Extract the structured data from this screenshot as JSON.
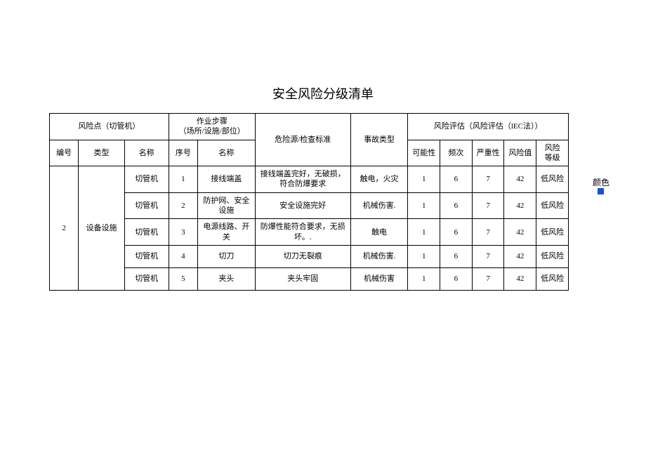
{
  "title": "安全风险分级清单",
  "headers": {
    "risk_point": "风险点（切管机）",
    "work_step": "作业步骤\n（场所/设施/部位）",
    "hazard": "危险源/检查标准",
    "accident_type": "事故类型",
    "risk_eval": "风险评估（风险评估（lEC法））",
    "no": "编号",
    "type": "类型",
    "name": "名称",
    "step_no": "序号",
    "step_name": "名称",
    "possibility": "可能性",
    "frequency": "频次",
    "severity": "严重性",
    "risk_value": "风险值",
    "risk_level": "风险\n等级"
  },
  "group": {
    "no": "2",
    "type": "设备设施"
  },
  "rows": [
    {
      "name": "切管机",
      "step_no": "1",
      "step_name": "接线端盖",
      "hazard": "接线端盖完好，无破损，符合防爆要求",
      "accident": "触电，火灾",
      "p": "1",
      "f": "6",
      "s": "7",
      "v": "42",
      "lvl": "低风险"
    },
    {
      "name": "切管机",
      "step_no": "2",
      "step_name": "防护网、安全设施",
      "hazard": "安全设施完好",
      "accident": "机械伤害.",
      "p": "1",
      "f": "6",
      "s": "7",
      "v": "42",
      "lvl": "低风险"
    },
    {
      "name": "切管机",
      "step_no": "3",
      "step_name": "电源线路、开关",
      "hazard": "防爆性能符合要求，无损坏。.",
      "accident": "触电",
      "p": "1",
      "f": "6",
      "s": "7",
      "v": "42",
      "lvl": "低风险"
    },
    {
      "name": "切管机",
      "step_no": "4",
      "step_name": "切刀",
      "hazard": "切刀无裂痕",
      "accident": "机械伤害.",
      "p": "1",
      "f": "6",
      "s": "7",
      "v": "42",
      "lvl": "低风险"
    },
    {
      "name": "切管机",
      "step_no": "5",
      "step_name": "夹头",
      "hazard": "夹头牢固",
      "accident": "机械伤害",
      "p": "1",
      "f": "6",
      "s": "7",
      "v": "42",
      "lvl": "低风险"
    }
  ],
  "side_label": "颜色",
  "swatch_color": "#1a4fd8"
}
